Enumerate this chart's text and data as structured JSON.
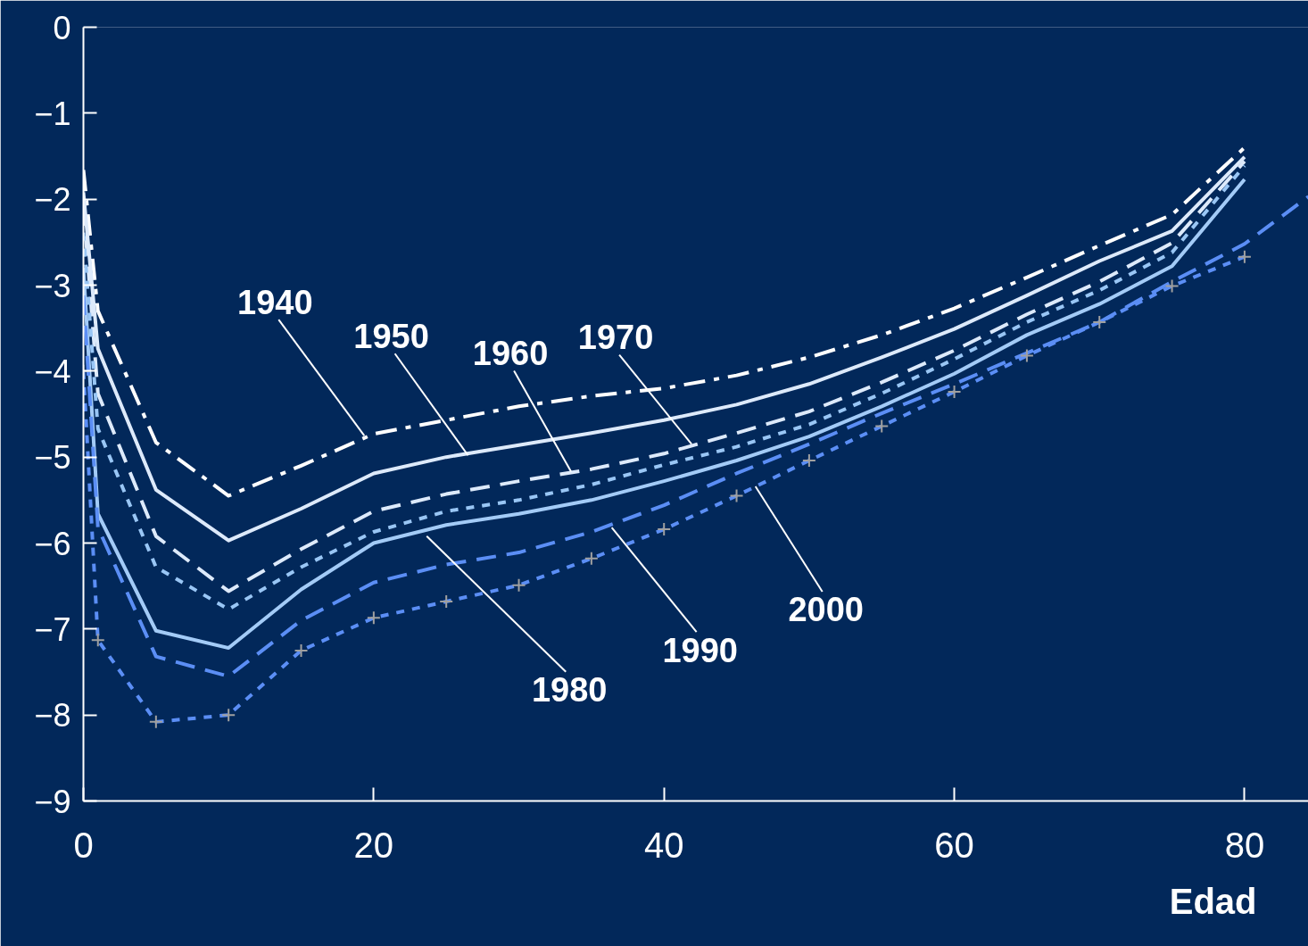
{
  "chart_data": {
    "type": "line",
    "xlabel": "Edad",
    "x": [
      0,
      1,
      5,
      10,
      15,
      20,
      25,
      30,
      35,
      40,
      45,
      50,
      55,
      60,
      65,
      70,
      75,
      80
    ],
    "xlim": [
      0,
      84.4
    ],
    "ylim": [
      -9,
      0
    ],
    "xticks": [
      0,
      20,
      40,
      60,
      80
    ],
    "yticks": [
      0,
      -1,
      -2,
      -3,
      -4,
      -5,
      -6,
      -7,
      -8,
      -9
    ],
    "grid": false,
    "marker": "none",
    "series": [
      {
        "color": "#ffffff",
        "line_style": "dashdot",
        "values": [
          -1.66,
          -3.3,
          -4.83,
          -5.45,
          -5.1,
          -4.73,
          -4.57,
          -4.41,
          -4.29,
          -4.2,
          -4.05,
          -3.84,
          -3.58,
          -3.27,
          -2.91,
          -2.54,
          -2.18,
          -1.4
        ]
      },
      {
        "color": "#ddeafb",
        "line_style": "solid",
        "values": [
          -1.92,
          -3.74,
          -5.38,
          -5.97,
          -5.6,
          -5.19,
          -5.0,
          -4.86,
          -4.72,
          -4.57,
          -4.39,
          -4.15,
          -3.84,
          -3.51,
          -3.12,
          -2.72,
          -2.37,
          -1.51
        ]
      },
      {
        "color": "#ddeafb",
        "line_style": "dashed",
        "values": [
          -2.08,
          -4.26,
          -5.92,
          -6.56,
          -6.07,
          -5.63,
          -5.43,
          -5.28,
          -5.14,
          -4.96,
          -4.72,
          -4.47,
          -4.13,
          -3.76,
          -3.34,
          -2.96,
          -2.51,
          -1.56
        ]
      },
      {
        "color": "#99c6f5",
        "line_style": "dotted",
        "values": [
          -2.39,
          -4.67,
          -6.28,
          -6.77,
          -6.28,
          -5.87,
          -5.63,
          -5.5,
          -5.32,
          -5.09,
          -4.88,
          -4.62,
          -4.26,
          -3.86,
          -3.43,
          -3.06,
          -2.62,
          -1.61
        ]
      },
      {
        "color": "#a3cbf7",
        "line_style": "solid",
        "values": [
          -2.8,
          -5.66,
          -7.02,
          -7.22,
          -6.54,
          -6.0,
          -5.79,
          -5.66,
          -5.5,
          -5.28,
          -5.04,
          -4.76,
          -4.41,
          -4.03,
          -3.58,
          -3.22,
          -2.78,
          -1.77
        ]
      },
      {
        "color": "#5b8ef5",
        "line_style": "dashed",
        "x": [
          0,
          1,
          5,
          10,
          15,
          20,
          25,
          30,
          35,
          40,
          45,
          50,
          55,
          60,
          65,
          70,
          75,
          80,
          84.4
        ],
        "values": [
          -3.12,
          -5.82,
          -7.32,
          -7.55,
          -6.9,
          -6.46,
          -6.25,
          -6.11,
          -5.87,
          -5.56,
          -5.19,
          -4.85,
          -4.49,
          -4.15,
          -3.79,
          -3.43,
          -2.96,
          -2.52,
          -1.97
        ]
      },
      {
        "color": "#5b8ef5",
        "line_style": "dotted",
        "marker": "cross",
        "values": [
          -4.0,
          -7.13,
          -8.08,
          -8.0,
          -7.25,
          -6.87,
          -6.68,
          -6.49,
          -6.18,
          -5.84,
          -5.45,
          -5.04,
          -4.64,
          -4.24,
          -3.82,
          -3.43,
          -3.01,
          -2.67
        ]
      }
    ],
    "annotations": [
      {
        "text": "1940",
        "x": 19.35,
        "y": -4.75
      },
      {
        "text": "1950",
        "x": 26.5,
        "y": -4.98
      },
      {
        "text": "1960",
        "x": 33.6,
        "y": -5.17
      },
      {
        "text": "1970",
        "x": 41.9,
        "y": -4.85
      },
      {
        "text": "1980",
        "x": 23.65,
        "y": -5.92
      },
      {
        "text": "1990",
        "x": 36.4,
        "y": -5.82
      },
      {
        "text": "2000",
        "x": 46.3,
        "y": -5.34
      }
    ]
  }
}
